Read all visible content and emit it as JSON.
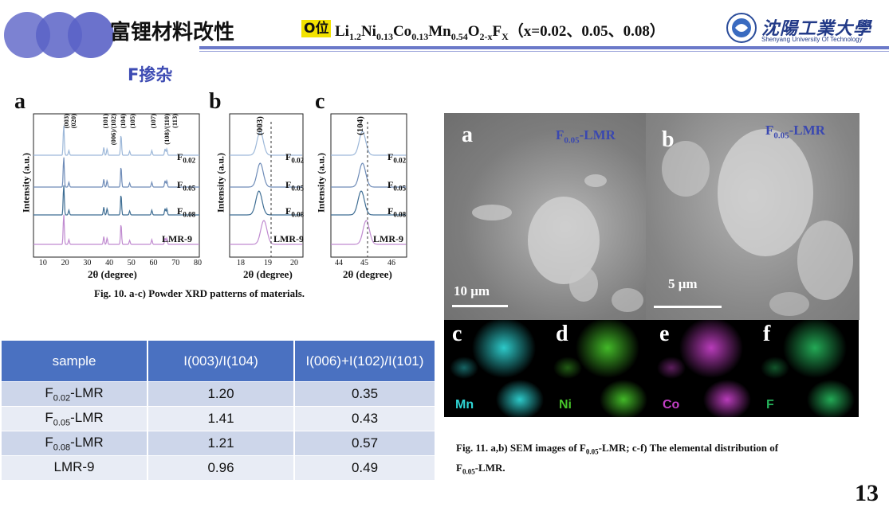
{
  "header": {
    "title": "富锂材料改性",
    "badge": "O位",
    "formula": {
      "prefix": "Li",
      "s1": "1.2",
      "ni": "Ni",
      "s2": "0.13",
      "co": "Co",
      "s3": "0.13",
      "mn": "Mn",
      "s4": "0.54",
      "o": "O",
      "s5": "2-x",
      "f": "F",
      "s6": "X",
      "tail": "（x=0.02、0.05、0.08）"
    },
    "subtitle": "F掺杂",
    "logo_text": "沈陽工業大學",
    "logo_sub": "Shenyang University Of Technology"
  },
  "xrd": {
    "panel_a": "a",
    "panel_b": "b",
    "panel_c": "c",
    "ylabel": "Intensity (a.u.)",
    "xlabel": "2θ (degree)",
    "series": [
      "F0.02",
      "F0.05",
      "F0.08",
      "LMR-9"
    ],
    "series_colors": [
      "#9db8d9",
      "#6f8cb8",
      "#3f6e94",
      "#c08bd0"
    ],
    "a_peaks": [
      "(003)",
      "(020)",
      "(101)",
      "(006)/(102)",
      "(104)",
      "(105)",
      "(107)",
      "(108)/(110)",
      "(113)"
    ],
    "a_ticks": [
      "10",
      "20",
      "30",
      "40",
      "50",
      "60",
      "70",
      "80"
    ],
    "b_peak": "(003)",
    "b_ticks": [
      "18",
      "19",
      "20"
    ],
    "c_peak": "(104)",
    "c_ticks": [
      "44",
      "45",
      "46"
    ],
    "caption": "Fig. 10. a-c) Powder XRD patterns of materials."
  },
  "table": {
    "headers": [
      "sample",
      "I(003)/I(104)",
      "I(006)+I(102)/I(101)"
    ],
    "rows": [
      {
        "base": "F",
        "sub": "0.02",
        "suffix": "-LMR",
        "r1": "1.20",
        "r2": "0.35"
      },
      {
        "base": "F",
        "sub": "0.05",
        "suffix": "-LMR",
        "r1": "1.41",
        "r2": "0.43"
      },
      {
        "base": "F",
        "sub": "0.08",
        "suffix": "-LMR",
        "r1": "1.21",
        "r2": "0.57"
      },
      {
        "base": "LMR-9",
        "sub": "",
        "suffix": "",
        "r1": "0.96",
        "r2": "0.49"
      }
    ]
  },
  "sem": {
    "a_letter": "a",
    "b_letter": "b",
    "a_label": "F",
    "a_label_sub": "0.05",
    "a_label_suffix": "-LMR",
    "b_label": "F",
    "b_label_sub": "0.05",
    "b_label_suffix": "-LMR",
    "a_scale": "10 μm",
    "b_scale": "5 μm",
    "edx": [
      {
        "letter": "c",
        "element": "Mn",
        "color": "#2fd4d4"
      },
      {
        "letter": "d",
        "element": "Ni",
        "color": "#46c22a"
      },
      {
        "letter": "e",
        "element": "Co",
        "color": "#c23fc4"
      },
      {
        "letter": "f",
        "element": "F",
        "color": "#25b25a"
      }
    ],
    "caption_line1_a": "Fig. 11. a,b) SEM images of F",
    "caption_line1_sub": "0.05",
    "caption_line1_b": "-LMR; c-f) The elemental distribution of",
    "caption_line2_a": "F",
    "caption_line2_sub": "0.05",
    "caption_line2_b": "-LMR."
  },
  "page_number": "13"
}
